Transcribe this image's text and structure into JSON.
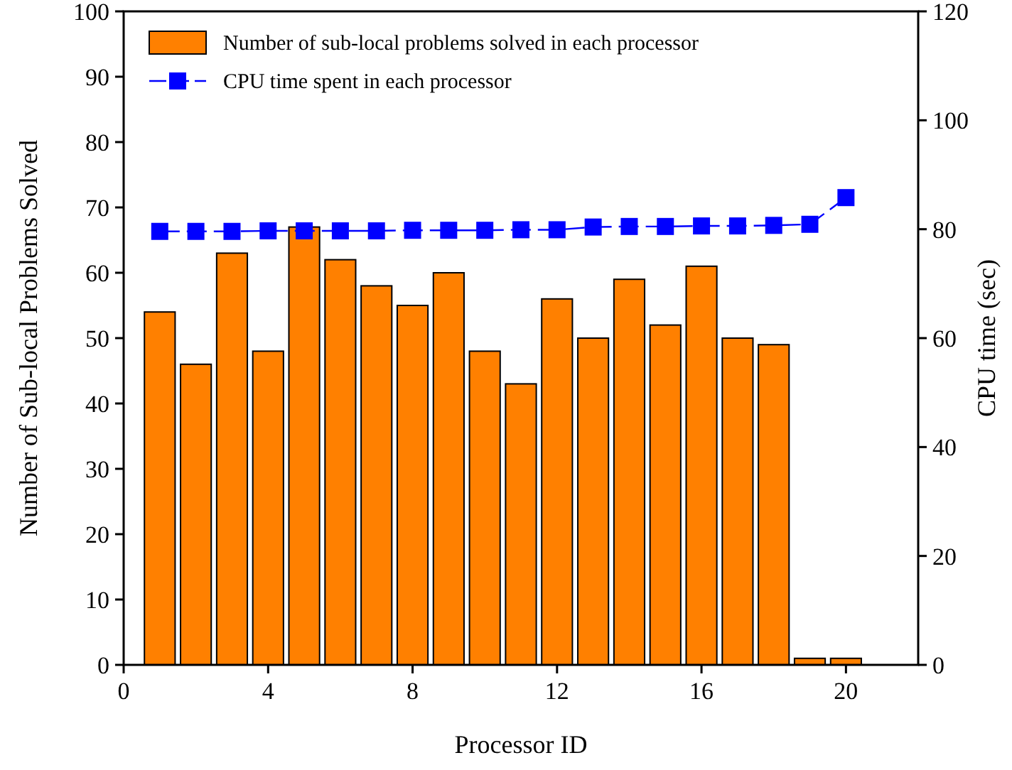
{
  "chart_data": {
    "type": "bar",
    "xlabel": "Processor ID",
    "ylabel": "Number of Sub-local Problems Solved",
    "y2label": "CPU time (sec)",
    "x": [
      1,
      2,
      3,
      4,
      5,
      6,
      7,
      8,
      9,
      10,
      11,
      12,
      13,
      14,
      15,
      16,
      17,
      18,
      19,
      20
    ],
    "xlim": [
      0,
      22
    ],
    "xticks": [
      0,
      4,
      8,
      12,
      16,
      20
    ],
    "ylim": [
      0,
      100
    ],
    "yticks": [
      0,
      10,
      20,
      30,
      40,
      50,
      60,
      70,
      80,
      90,
      100
    ],
    "y2lim": [
      0,
      120
    ],
    "y2ticks": [
      0,
      20,
      40,
      60,
      80,
      100,
      120
    ],
    "series": [
      {
        "name": "Number of sub-local problems solved in each processor",
        "color": "#ff8000",
        "values": [
          54,
          46,
          63,
          48,
          67,
          62,
          58,
          55,
          60,
          48,
          43,
          56,
          50,
          59,
          52,
          61,
          50,
          49,
          1,
          1
        ]
      },
      {
        "name": "CPU time spent in each processor",
        "type": "line",
        "axis": "y2",
        "color": "#0000ff",
        "marker": "square",
        "line_style": "dashed",
        "values": [
          79.6,
          79.6,
          79.6,
          79.7,
          79.7,
          79.7,
          79.7,
          79.8,
          79.8,
          79.8,
          79.9,
          79.9,
          80.4,
          80.5,
          80.5,
          80.6,
          80.6,
          80.7,
          80.9,
          85.8
        ]
      }
    ],
    "grid": false,
    "legend": "top left"
  }
}
